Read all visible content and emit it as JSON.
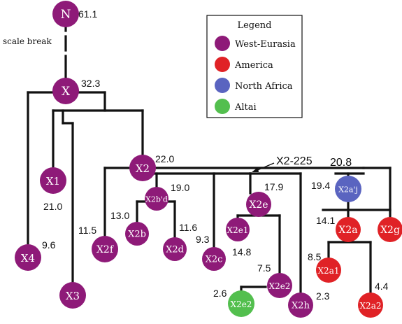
{
  "colors": {
    "West-Eurasia": "#8e1a78",
    "America": "#e02226",
    "North Africa": "#5a64c0",
    "Altai": "#53bf4e",
    "line": "#111111"
  },
  "scale_break": "scale break",
  "annotation": "X2-225",
  "legend": {
    "title": "Legend",
    "items": [
      {
        "label": "West-Eurasia",
        "key": "West-Eurasia"
      },
      {
        "label": "America",
        "key": "America"
      },
      {
        "label": "North Africa",
        "key": "North Africa"
      },
      {
        "label": "Altai",
        "key": "Altai"
      }
    ]
  },
  "nodes": [
    {
      "id": "N",
      "label": "N",
      "group": "West-Eurasia",
      "age": "61.1"
    },
    {
      "id": "X",
      "label": "X",
      "group": "West-Eurasia",
      "age": "32.3"
    },
    {
      "id": "X1",
      "label": "X1",
      "group": "West-Eurasia",
      "age": "21.0"
    },
    {
      "id": "X4",
      "label": "X4",
      "group": "West-Eurasia",
      "age": "9.6"
    },
    {
      "id": "X3",
      "label": "X3",
      "group": "West-Eurasia",
      "age": ""
    },
    {
      "id": "X2",
      "label": "X2",
      "group": "West-Eurasia",
      "age": "22.0"
    },
    {
      "id": "X2f",
      "label": "X2f",
      "group": "West-Eurasia",
      "age": "11.5"
    },
    {
      "id": "X2b'd",
      "label": "X2b'd",
      "group": "West-Eurasia",
      "age": "19.0"
    },
    {
      "id": "X2b",
      "label": "X2b",
      "group": "West-Eurasia",
      "age": "13.0"
    },
    {
      "id": "X2d",
      "label": "X2d",
      "group": "West-Eurasia",
      "age": "11.6"
    },
    {
      "id": "X2c",
      "label": "X2c",
      "group": "West-Eurasia",
      "age": "9.3"
    },
    {
      "id": "X2e",
      "label": "X2e",
      "group": "West-Eurasia",
      "age": "17.9"
    },
    {
      "id": "X2e1",
      "label": "X2e1",
      "group": "West-Eurasia",
      "age": "14.8"
    },
    {
      "id": "X2e2",
      "label": "X2e2",
      "group": "West-Eurasia",
      "age": "7.5"
    },
    {
      "id": "X2e2-altai",
      "label": "X2e2",
      "group": "Altai",
      "age": "2.6"
    },
    {
      "id": "X2h",
      "label": "X2h",
      "group": "West-Eurasia",
      "age": "2.3"
    },
    {
      "id": "X2a'j",
      "label": "X2a'j",
      "group": "North Africa",
      "age": "19.4",
      "clade_age": "20.8"
    },
    {
      "id": "X2a",
      "label": "X2a",
      "group": "America",
      "age": "14.1"
    },
    {
      "id": "X2g",
      "label": "X2g",
      "group": "America",
      "age": ""
    },
    {
      "id": "X2a1",
      "label": "X2a1",
      "group": "America",
      "age": "8.5"
    },
    {
      "id": "X2a2",
      "label": "X2a2",
      "group": "America",
      "age": "4.4"
    }
  ]
}
